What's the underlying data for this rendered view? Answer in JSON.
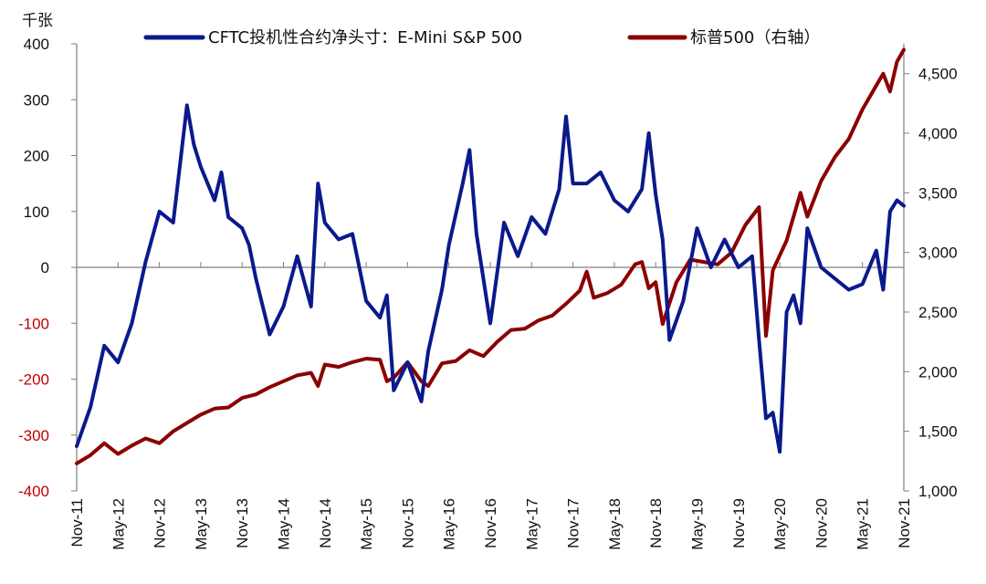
{
  "chart_data": {
    "type": "line",
    "unit_label": "千张",
    "colors": {
      "cftc": "#0a1a8c",
      "spx": "#8b0000",
      "axis": "#7f7f7f",
      "negative_tick": "#c00000"
    },
    "left_axis": {
      "ylim": [
        -400,
        400
      ],
      "ticks": [
        400,
        300,
        200,
        100,
        0,
        -100,
        -200,
        -300,
        -400
      ],
      "tick_labels": [
        "400",
        "300",
        "200",
        "100",
        "0",
        "-100",
        "-200",
        "-300",
        "-400"
      ]
    },
    "right_axis": {
      "ylim": [
        1000,
        4750
      ],
      "ticks": [
        4500,
        4000,
        3500,
        3000,
        2500,
        2000,
        1500,
        1000
      ],
      "tick_labels": [
        "4,500",
        "4,000",
        "3,500",
        "3,000",
        "2,500",
        "2,000",
        "1,500",
        "1,000"
      ]
    },
    "x_axis": {
      "start": "Nov-11",
      "end": "Nov-21",
      "tick_labels": [
        "Nov-11",
        "May-12",
        "Nov-12",
        "May-13",
        "Nov-13",
        "May-14",
        "Nov-14",
        "May-15",
        "Nov-15",
        "May-16",
        "Nov-16",
        "May-17",
        "Nov-17",
        "May-18",
        "Nov-18",
        "May-19",
        "Nov-19",
        "May-20",
        "Nov-20",
        "May-21",
        "Nov-21"
      ]
    },
    "legend_position": "top",
    "series": [
      {
        "name": "CFTC投机性合约净头寸：E-Mini S&P 500",
        "axis": "left",
        "x": [
          "Nov-11",
          "Jan-12",
          "Mar-12",
          "May-12",
          "Jul-12",
          "Sep-12",
          "Nov-12",
          "Jan-13",
          "Mar-13",
          "Apr-13",
          "May-13",
          "Jul-13",
          "Aug-13",
          "Sep-13",
          "Nov-13",
          "Dec-13",
          "Jan-14",
          "Mar-14",
          "May-14",
          "Jul-14",
          "Sep-14",
          "Oct-14",
          "Nov-14",
          "Jan-15",
          "Mar-15",
          "May-15",
          "Jul-15",
          "Aug-15",
          "Sep-15",
          "Nov-15",
          "Jan-16",
          "Feb-16",
          "Apr-16",
          "May-16",
          "Jul-16",
          "Aug-16",
          "Sep-16",
          "Nov-16",
          "Jan-17",
          "Mar-17",
          "May-17",
          "Jul-17",
          "Sep-17",
          "Oct-17",
          "Nov-17",
          "Jan-18",
          "Mar-18",
          "May-18",
          "Jul-18",
          "Sep-18",
          "Oct-18",
          "Nov-18",
          "Dec-18",
          "Jan-19",
          "Mar-19",
          "May-19",
          "Jul-19",
          "Sep-19",
          "Nov-19",
          "Jan-20",
          "Feb-20",
          "Mar-20",
          "Apr-20",
          "May-20",
          "Jun-20",
          "Jul-20",
          "Aug-20",
          "Sep-20",
          "Nov-20",
          "Jan-21",
          "Mar-21",
          "May-21",
          "Jul-21",
          "Aug-21",
          "Sep-21",
          "Oct-21",
          "Nov-21"
        ],
        "values": [
          -320,
          -250,
          -140,
          -170,
          -100,
          10,
          100,
          80,
          290,
          220,
          180,
          120,
          170,
          90,
          70,
          40,
          -20,
          -120,
          -70,
          20,
          -70,
          150,
          80,
          50,
          60,
          -60,
          -90,
          -50,
          -220,
          -170,
          -240,
          -150,
          -40,
          40,
          150,
          210,
          60,
          -100,
          80,
          20,
          90,
          60,
          140,
          270,
          150,
          150,
          170,
          120,
          100,
          140,
          240,
          130,
          50,
          -130,
          -60,
          70,
          0,
          50,
          0,
          20,
          -130,
          -270,
          -260,
          -330,
          -80,
          -50,
          -100,
          70,
          0,
          -20,
          -40,
          -30,
          30,
          -40,
          100,
          120,
          110
        ]
      },
      {
        "name": "标普500（右轴）",
        "axis": "right",
        "x": [
          "Nov-11",
          "Jan-12",
          "Mar-12",
          "May-12",
          "Jul-12",
          "Sep-12",
          "Nov-12",
          "Jan-13",
          "Mar-13",
          "May-13",
          "Jul-13",
          "Sep-13",
          "Nov-13",
          "Jan-14",
          "Mar-14",
          "May-14",
          "Jul-14",
          "Sep-14",
          "Oct-14",
          "Nov-14",
          "Jan-15",
          "Mar-15",
          "May-15",
          "Jul-15",
          "Aug-15",
          "Sep-15",
          "Nov-15",
          "Jan-16",
          "Feb-16",
          "Apr-16",
          "Jun-16",
          "Aug-16",
          "Oct-16",
          "Dec-16",
          "Feb-17",
          "Apr-17",
          "Jun-17",
          "Aug-17",
          "Oct-17",
          "Dec-17",
          "Jan-18",
          "Feb-18",
          "Apr-18",
          "Jun-18",
          "Aug-18",
          "Sep-18",
          "Oct-18",
          "Nov-18",
          "Dec-18",
          "Feb-19",
          "Apr-19",
          "Jun-19",
          "Aug-19",
          "Oct-19",
          "Dec-19",
          "Feb-20",
          "Mar-20",
          "Apr-20",
          "Jun-20",
          "Aug-20",
          "Sep-20",
          "Nov-20",
          "Jan-21",
          "Mar-21",
          "May-21",
          "Jul-21",
          "Aug-21",
          "Sep-21",
          "Oct-21",
          "Nov-21"
        ],
        "values": [
          1230,
          1300,
          1400,
          1310,
          1380,
          1440,
          1400,
          1500,
          1570,
          1640,
          1690,
          1700,
          1780,
          1810,
          1870,
          1920,
          1970,
          1990,
          1880,
          2060,
          2040,
          2080,
          2110,
          2100,
          1920,
          1950,
          2080,
          1920,
          1880,
          2070,
          2090,
          2180,
          2130,
          2250,
          2350,
          2360,
          2430,
          2470,
          2570,
          2680,
          2840,
          2620,
          2660,
          2730,
          2900,
          2920,
          2700,
          2750,
          2400,
          2750,
          2940,
          2920,
          2900,
          3000,
          3230,
          3380,
          2300,
          2850,
          3100,
          3500,
          3300,
          3600,
          3800,
          3950,
          4200,
          4400,
          4500,
          4350,
          4600,
          4700
        ]
      }
    ]
  }
}
